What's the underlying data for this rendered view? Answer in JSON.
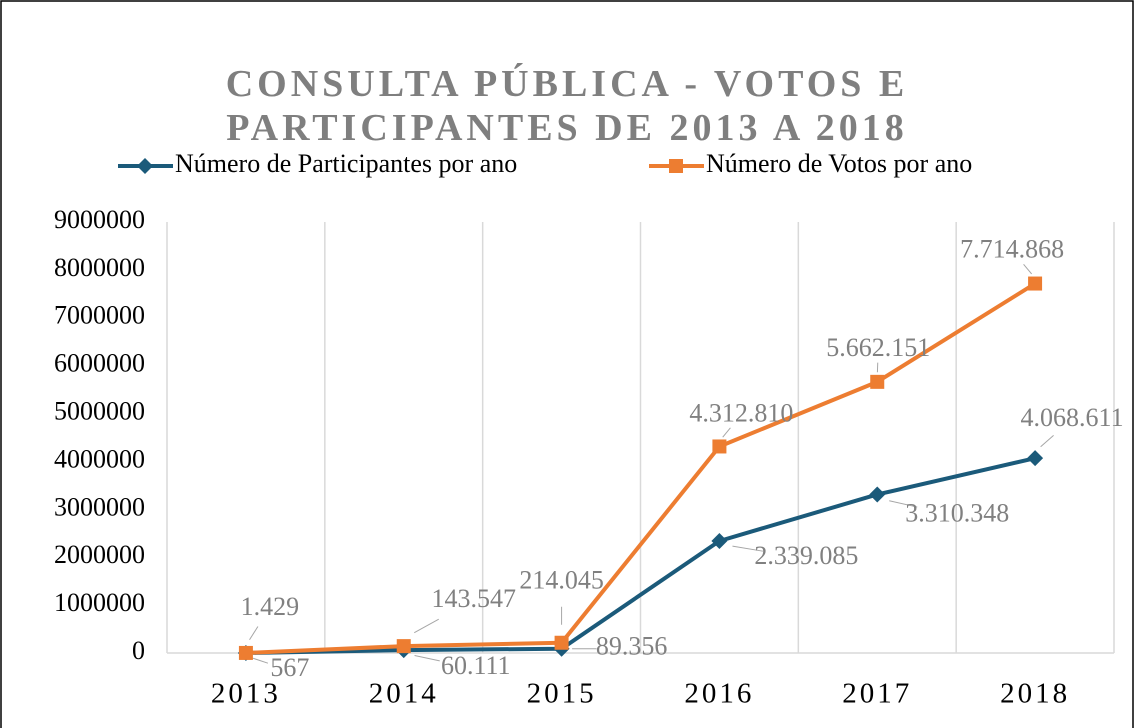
{
  "chart_data": {
    "type": "line",
    "title": "CONSULTA PÚBLICA - VOTOS E PARTICIPANTES DE 2013 A 2018",
    "categories": [
      "2013",
      "2014",
      "2015",
      "2016",
      "2017",
      "2018"
    ],
    "series": [
      {
        "name": "Número de Participantes por ano",
        "color": "#1b5a7a",
        "marker": "diamond",
        "values": [
          567,
          60111,
          89356,
          2339085,
          3310348,
          4068611
        ],
        "value_labels": [
          "567",
          "60.111",
          "89.356",
          "2.339.085",
          "3.310.348",
          "4.068.611"
        ]
      },
      {
        "name": "Número de Votos por ano",
        "color": "#ed7d31",
        "marker": "square",
        "values": [
          1429,
          143547,
          214045,
          4312810,
          5662151,
          7714868
        ],
        "value_labels": [
          "1.429",
          "143.547",
          "214.045",
          "4.312.810",
          "5.662.151",
          "7.714.868"
        ]
      }
    ],
    "ylim": [
      0,
      9000000
    ],
    "yticks": [
      0,
      1000000,
      2000000,
      3000000,
      4000000,
      5000000,
      6000000,
      7000000,
      8000000,
      9000000
    ],
    "grid": true,
    "legend": "top"
  }
}
